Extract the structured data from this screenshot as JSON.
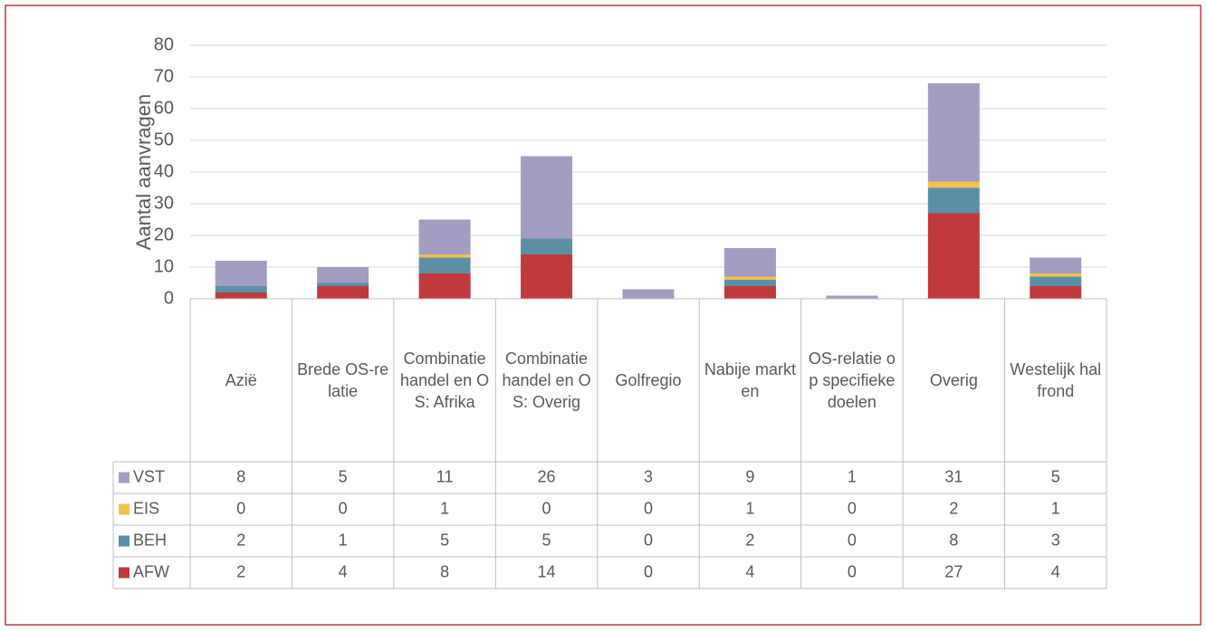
{
  "chart_data": {
    "type": "bar",
    "stacked": true,
    "y_label": "Aantal aanvragen",
    "categories": [
      "Azië",
      "Brede OS-relatie",
      "Combinatie handel en OS: Afrika",
      "Combinatie handel en OS: Overig",
      "Golfregio",
      "Nabije markten",
      "OS-relatie op specifieke doelen",
      "Overig",
      "Westelijk halfrond"
    ],
    "series": [
      {
        "name": "VST",
        "color": "#a39dc3",
        "values": [
          8,
          5,
          11,
          26,
          3,
          9,
          1,
          31,
          5
        ]
      },
      {
        "name": "EIS",
        "color": "#f2c14e",
        "values": [
          0,
          0,
          1,
          0,
          0,
          1,
          0,
          2,
          1
        ]
      },
      {
        "name": "BEH",
        "color": "#5b8fa8",
        "values": [
          2,
          1,
          5,
          5,
          0,
          2,
          0,
          8,
          3
        ]
      },
      {
        "name": "AFW",
        "color": "#c0393b",
        "values": [
          2,
          4,
          8,
          14,
          0,
          4,
          0,
          27,
          4
        ]
      }
    ],
    "ylim": [
      0,
      80
    ],
    "yticks": [
      0,
      10,
      20,
      30,
      40,
      50,
      60,
      70,
      80
    ],
    "grid": true
  }
}
